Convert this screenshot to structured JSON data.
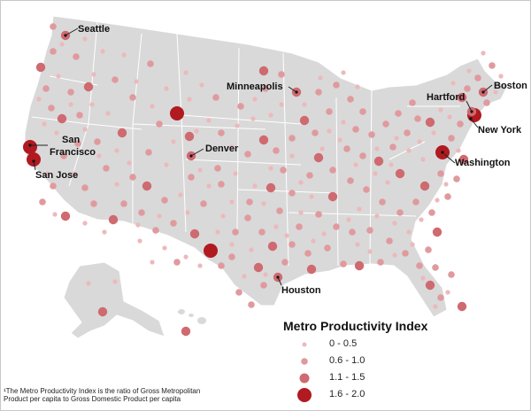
{
  "map": {
    "land_color": "#d9d9d9",
    "border_color": "#ffffff",
    "dot_colors": {
      "0-0.5": "#ecb9bc",
      "0.6-1.0": "#e09a9e",
      "1.1-1.5": "#cf6a70",
      "1.6-2.0": "#b11a20"
    }
  },
  "cities": [
    {
      "name": "Seattle",
      "label": "Seattle"
    },
    {
      "name": "Minneapolis",
      "label": "Minneapolis"
    },
    {
      "name": "Hartford",
      "label": "Hartford"
    },
    {
      "name": "Boston",
      "label": "Boston"
    },
    {
      "name": "New York",
      "label": "New York"
    },
    {
      "name": "San Francisco",
      "label": "San"
    },
    {
      "name": "San Francisco line 2",
      "label": "Francisco"
    },
    {
      "name": "Denver",
      "label": "Denver"
    },
    {
      "name": "San Jose",
      "label": "San Jose"
    },
    {
      "name": "Washington",
      "label": "Washington"
    },
    {
      "name": "Houston",
      "label": "Houston"
    }
  ],
  "legend": {
    "title": "Metro Productivity Index",
    "items": [
      {
        "label": "0 - 0.5",
        "class": "0-0.5"
      },
      {
        "label": "0.6 - 1.0",
        "class": "0.6-1.0"
      },
      {
        "label": "1.1 - 1.5",
        "class": "1.1-1.5"
      },
      {
        "label": "1.6 - 2.0",
        "class": "1.6-2.0"
      }
    ]
  },
  "footnote": {
    "line1": "¹The Metro Productivity Index is the ratio of Gross Metropolitan",
    "line2": "Product per capita to Gross Domestic Product per capita"
  }
}
